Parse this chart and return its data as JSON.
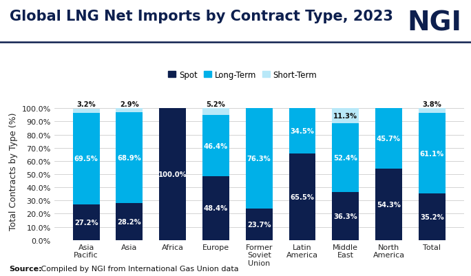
{
  "categories": [
    "Asia\nPacific",
    "Asia",
    "Africa",
    "Europe",
    "Former\nSoviet\nUnion",
    "Latin\nAmerica",
    "Middle\nEast",
    "North\nAmerica",
    "Total"
  ],
  "spot": [
    27.2,
    28.2,
    100.0,
    48.4,
    23.7,
    65.5,
    36.3,
    54.3,
    35.2
  ],
  "long_term": [
    69.5,
    68.9,
    0.0,
    46.4,
    76.3,
    34.5,
    52.4,
    45.7,
    61.1
  ],
  "short_term": [
    3.2,
    2.9,
    0.0,
    5.2,
    0.0,
    0.0,
    11.3,
    0.0,
    3.8
  ],
  "spot_labels": [
    "27.2%",
    "28.2%",
    "100.0%",
    "48.4%",
    "23.7%",
    "65.5%",
    "36.3%",
    "54.3%",
    "35.2%"
  ],
  "long_term_labels": [
    "69.5%",
    "68.9%",
    "",
    "46.4%",
    "76.3%",
    "34.5%",
    "52.4%",
    "45.7%",
    "61.1%"
  ],
  "short_term_labels": [
    "3.2%",
    "2.9%",
    "",
    "5.2%",
    "",
    "",
    "11.3%",
    "",
    "3.8%"
  ],
  "color_spot": "#0d1f4e",
  "color_long_term": "#00b0e8",
  "color_short_term": "#b8e8f8",
  "title": "Global LNG Net Imports by Contract Type, 2023",
  "ylabel": "Total Contracts by Type (%)",
  "ylim": [
    0,
    100
  ],
  "yticks": [
    0,
    10,
    20,
    30,
    40,
    50,
    60,
    70,
    80,
    90,
    100
  ],
  "ytick_labels": [
    "0.0%",
    "10.0%",
    "20.0%",
    "30.0%",
    "40.0%",
    "50.0%",
    "60.0%",
    "70.0%",
    "80.0%",
    "90.0%",
    "100.0%"
  ],
  "legend_labels": [
    "Spot",
    "Long-Term",
    "Short-Term"
  ],
  "source_bold": "Source:",
  "source_rest": " Compiled by NGI from International Gas Union data",
  "ngi_logo_text": "NGI",
  "background_color": "#ffffff",
  "title_fontsize": 15,
  "bar_label_fontsize": 7.2,
  "ylabel_fontsize": 9,
  "axis_label_fontsize": 8
}
